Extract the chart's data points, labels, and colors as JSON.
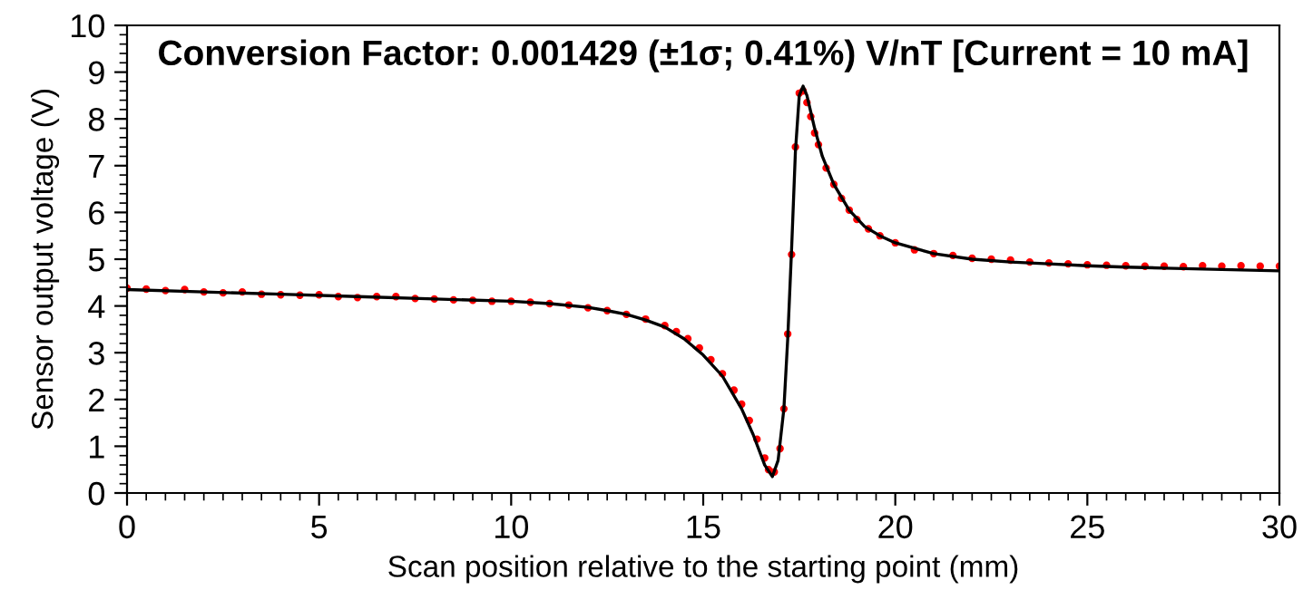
{
  "chart_data": {
    "type": "line",
    "title": "Conversion Factor: 0.001429 (±1σ; 0.41%) V/nT [Current = 10 mA]",
    "xlabel": "Scan position relative to the starting point (mm)",
    "ylabel": "Sensor output voltage (V)",
    "xlim": [
      0,
      30
    ],
    "ylim": [
      0,
      10
    ],
    "xticks": [
      0,
      5,
      10,
      15,
      20,
      25,
      30
    ],
    "yticks": [
      0,
      1,
      2,
      3,
      4,
      5,
      6,
      7,
      8,
      9,
      10
    ],
    "grid": false,
    "legend": false,
    "series": [
      {
        "type": "scatter",
        "color": "#ff0000",
        "marker": "circle",
        "x": [
          0,
          0.5,
          1,
          1.5,
          2,
          2.5,
          3,
          3.5,
          4,
          4.5,
          5,
          5.5,
          6,
          6.5,
          7,
          7.5,
          8,
          8.5,
          9,
          9.5,
          10,
          10.5,
          11,
          11.5,
          12,
          12.5,
          13,
          13.5,
          14,
          14.3,
          14.6,
          14.9,
          15.2,
          15.5,
          15.8,
          16.0,
          16.2,
          16.4,
          16.6,
          16.7,
          16.85,
          17.0,
          17.1,
          17.2,
          17.3,
          17.4,
          17.5,
          17.6,
          17.7,
          17.8,
          17.9,
          18.0,
          18.2,
          18.4,
          18.6,
          18.8,
          19.0,
          19.3,
          19.6,
          20,
          20.5,
          21,
          21.5,
          22,
          22.5,
          23,
          23.5,
          24,
          24.5,
          25,
          25.5,
          26,
          26.5,
          27,
          27.5,
          28,
          28.5,
          29,
          29.5,
          30
        ],
        "values": [
          4.38,
          4.36,
          4.33,
          4.35,
          4.3,
          4.28,
          4.3,
          4.25,
          4.24,
          4.23,
          4.24,
          4.2,
          4.18,
          4.2,
          4.2,
          4.16,
          4.15,
          4.13,
          4.12,
          4.1,
          4.1,
          4.08,
          4.05,
          4.02,
          3.96,
          3.9,
          3.82,
          3.72,
          3.58,
          3.45,
          3.3,
          3.1,
          2.85,
          2.55,
          2.2,
          1.9,
          1.55,
          1.15,
          0.75,
          0.5,
          0.45,
          0.95,
          1.8,
          3.4,
          5.1,
          7.4,
          8.55,
          8.6,
          8.35,
          8.05,
          7.7,
          7.45,
          6.95,
          6.6,
          6.3,
          6.05,
          5.85,
          5.65,
          5.5,
          5.35,
          5.2,
          5.12,
          5.08,
          5.02,
          5.0,
          4.98,
          4.94,
          4.92,
          4.9,
          4.88,
          4.87,
          4.86,
          4.85,
          4.85,
          4.84,
          4.86,
          4.85,
          4.86,
          4.85,
          4.85
        ]
      },
      {
        "color": "#000000",
        "marker": "none",
        "line_style": "solid",
        "x": [
          0,
          2,
          4,
          6,
          8,
          10,
          11,
          12,
          12.5,
          13,
          13.5,
          14,
          14.5,
          15,
          15.5,
          16,
          16.3,
          16.6,
          16.8,
          16.95,
          17.1,
          17.2,
          17.3,
          17.4,
          17.5,
          17.6,
          17.7,
          17.9,
          18.1,
          18.4,
          18.8,
          19.2,
          19.6,
          20,
          21,
          22,
          23,
          24,
          25,
          26,
          27,
          28,
          29,
          30
        ],
        "values": [
          4.35,
          4.3,
          4.25,
          4.2,
          4.15,
          4.1,
          4.05,
          3.97,
          3.9,
          3.82,
          3.7,
          3.55,
          3.3,
          2.95,
          2.5,
          1.8,
          1.25,
          0.6,
          0.35,
          0.7,
          1.8,
          3.3,
          5.2,
          7.3,
          8.5,
          8.7,
          8.5,
          7.8,
          7.2,
          6.6,
          6.05,
          5.7,
          5.5,
          5.35,
          5.12,
          5.0,
          4.94,
          4.9,
          4.86,
          4.83,
          4.81,
          4.79,
          4.77,
          4.75
        ]
      }
    ]
  }
}
